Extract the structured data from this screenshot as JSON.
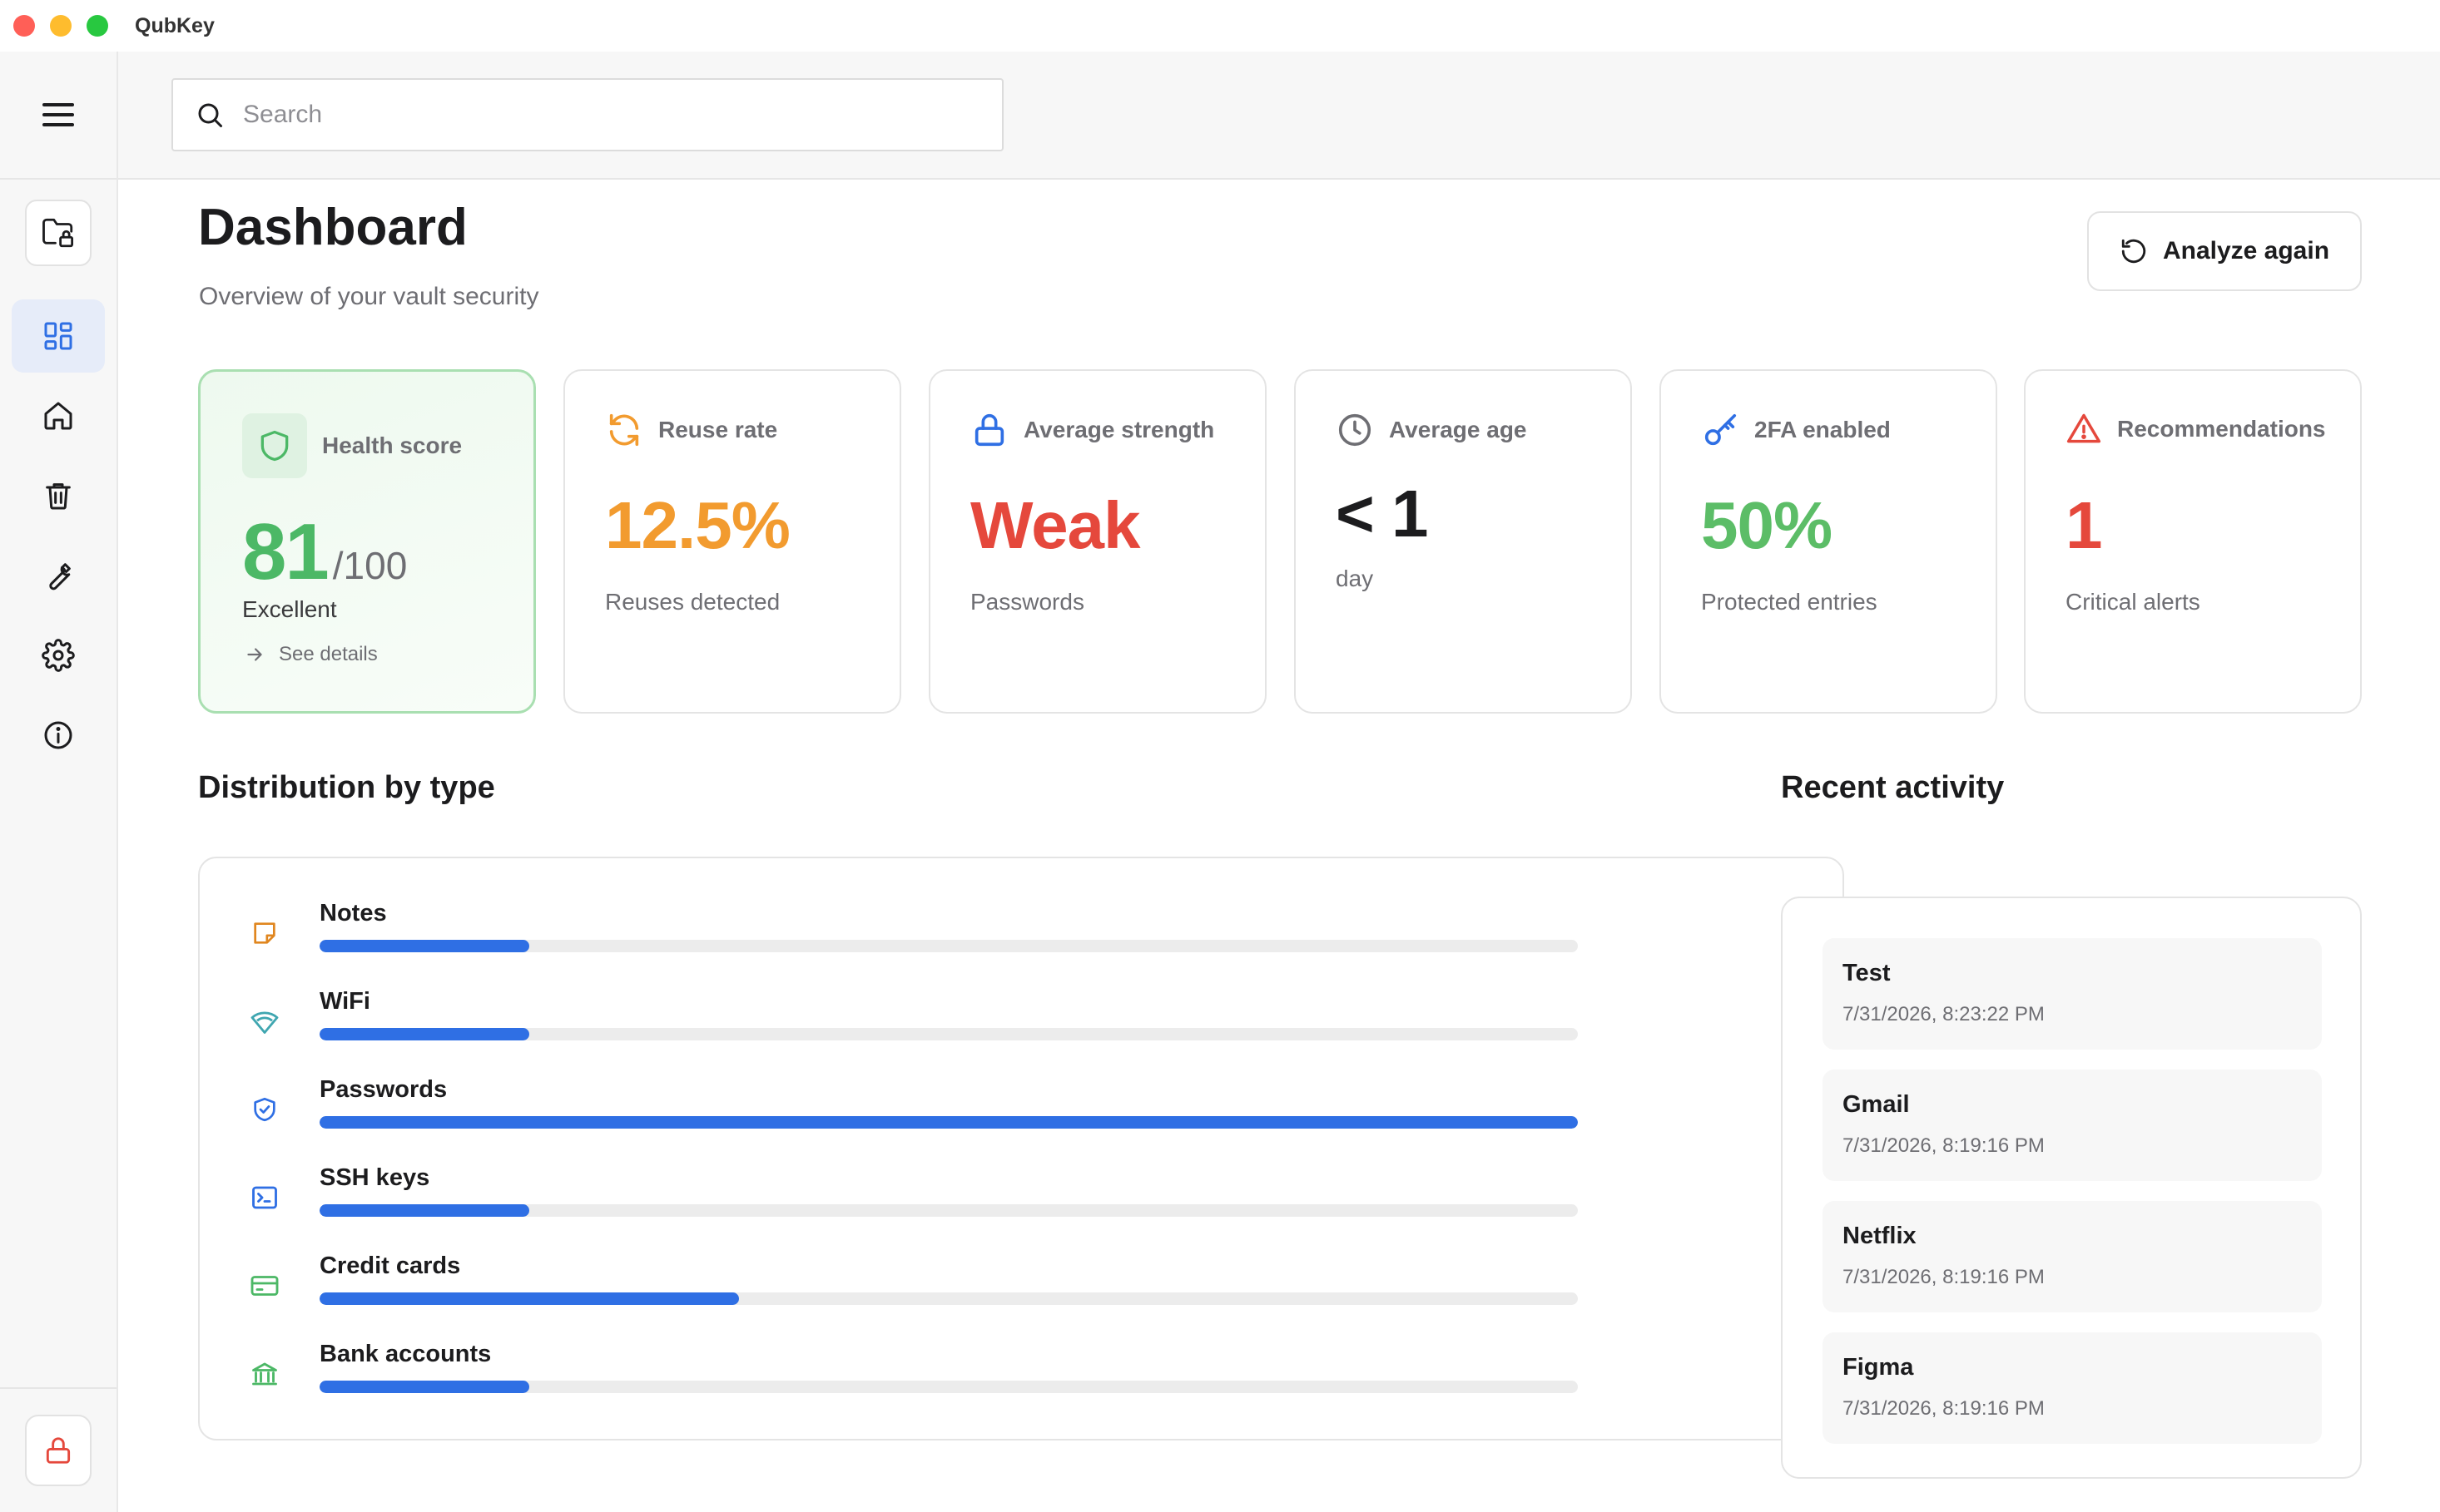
{
  "app": {
    "title": "QubKey"
  },
  "search": {
    "placeholder": "Search"
  },
  "sidebar": {
    "items": [
      {
        "icon": "dashboard-icon",
        "active": true
      },
      {
        "icon": "home-icon"
      },
      {
        "icon": "trash-icon"
      },
      {
        "icon": "wrench-icon"
      },
      {
        "icon": "gear-icon"
      },
      {
        "icon": "info-icon"
      }
    ]
  },
  "header": {
    "title": "Dashboard",
    "subtitle": "Overview of your vault security",
    "analyze_label": "Analyze again"
  },
  "cards": {
    "health": {
      "label": "Health score",
      "score": "81",
      "max": "/100",
      "status": "Excellent",
      "link": "See details"
    },
    "reuse": {
      "label": "Reuse rate",
      "value": "12.5%",
      "sub": "Reuses detected",
      "color": "#f29b2f"
    },
    "strength": {
      "label": "Average strength",
      "value": "Weak",
      "sub": "Passwords",
      "color": "#e5483c"
    },
    "age": {
      "label": "Average age",
      "value": "< 1",
      "sub": "day",
      "color": "#1c1c1e"
    },
    "twofa": {
      "label": "2FA enabled",
      "value": "50%",
      "sub": "Protected entries",
      "color": "#5cbd67"
    },
    "recs": {
      "label": "Recommendations",
      "value": "1",
      "sub": "Critical alerts",
      "color": "#e5483c"
    }
  },
  "distribution": {
    "title": "Distribution by type",
    "max": 6,
    "items": [
      {
        "label": "Notes",
        "count": "1",
        "value": 1,
        "icon": "note-icon"
      },
      {
        "label": "WiFi",
        "count": "1",
        "value": 1,
        "icon": "wifi-icon"
      },
      {
        "label": "Passwords",
        "count": "6",
        "value": 6,
        "icon": "shield-check-icon"
      },
      {
        "label": "SSH keys",
        "count": "1",
        "value": 1,
        "icon": "terminal-icon"
      },
      {
        "label": "Credit cards",
        "count": "2",
        "value": 2,
        "icon": "credit-card-icon"
      },
      {
        "label": "Bank accounts",
        "count": "1",
        "value": 1,
        "icon": "bank-icon"
      }
    ]
  },
  "activity": {
    "title": "Recent activity",
    "items": [
      {
        "name": "Test",
        "time": "7/31/2026, 8:23:22 PM"
      },
      {
        "name": "Gmail",
        "time": "7/31/2026, 8:19:16 PM"
      },
      {
        "name": "Netflix",
        "time": "7/31/2026, 8:19:16 PM"
      },
      {
        "name": "Figma",
        "time": "7/31/2026, 8:19:16 PM"
      }
    ]
  }
}
